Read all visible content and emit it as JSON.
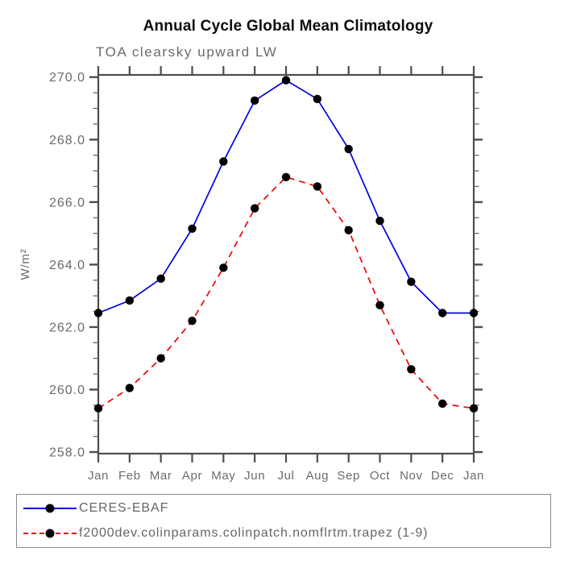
{
  "page": {
    "background": "#ffffff"
  },
  "chart_data": {
    "type": "line",
    "title": "Annual Cycle Global Mean Climatology",
    "subtitle": "TOA clearsky upward LW",
    "ylabel": "W/m²",
    "xlabel": "",
    "categories": [
      "Jan",
      "Feb",
      "Mar",
      "Apr",
      "May",
      "Jun",
      "Jul",
      "Aug",
      "Sep",
      "Oct",
      "Nov",
      "Dec",
      "Jan"
    ],
    "series": [
      {
        "name": "CERES-EBAF",
        "color": "#0000e0",
        "line_style": "solid",
        "marker": "filled-circle",
        "marker_color": "#000000",
        "values": [
          262.45,
          262.85,
          263.55,
          265.15,
          267.3,
          269.25,
          269.9,
          269.3,
          267.7,
          265.4,
          263.45,
          262.45,
          262.45
        ]
      },
      {
        "name": "f2000dev.colinparams.colinpatch.nomflrtm.trapez (1-9)",
        "color": "#ee0000",
        "line_style": "dashed",
        "marker": "filled-circle",
        "marker_color": "#000000",
        "values": [
          259.4,
          260.05,
          261.0,
          262.2,
          263.9,
          265.8,
          266.8,
          266.5,
          265.1,
          262.7,
          260.65,
          259.55,
          259.4
        ]
      }
    ],
    "yticks_major": [
      258.0,
      260.0,
      262.0,
      264.0,
      266.0,
      268.0,
      270.0
    ],
    "ytick_minor_step": 0.5,
    "ytick_label_format": "one-decimal",
    "ylim": [
      257.95,
      270.07
    ],
    "grid": false,
    "legend_position": "bottom",
    "axis_color": "#4d4d4d",
    "tick_label_color": "#6b6b6b"
  }
}
